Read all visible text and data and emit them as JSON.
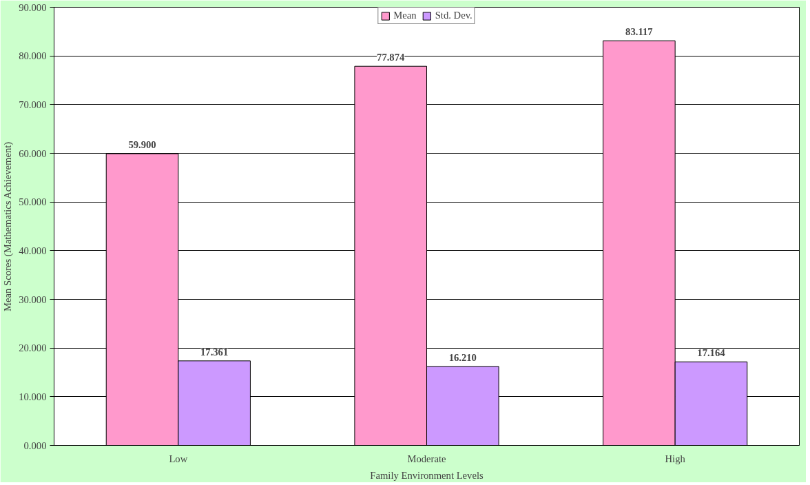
{
  "chart_data": {
    "type": "bar",
    "xlabel": "Family Environment Levels",
    "ylabel": "Mean Scores (Mathematics Achievement)",
    "categories": [
      "Low",
      "Moderate",
      "High"
    ],
    "series": [
      {
        "name": "Mean",
        "color": "#ff99cc",
        "values": [
          59.9,
          77.874,
          83.117
        ],
        "value_labels": [
          "59.900",
          "77.874",
          "83.117"
        ]
      },
      {
        "name": "Std. Dev.",
        "color": "#cc99ff",
        "values": [
          17.361,
          16.21,
          17.164
        ],
        "value_labels": [
          "17.361",
          "16.210",
          "17.164"
        ]
      }
    ],
    "ylim": [
      0,
      90
    ],
    "yticks": [
      {
        "value": 0,
        "label": "0.000"
      },
      {
        "value": 10,
        "label": "10.000"
      },
      {
        "value": 20,
        "label": "20.000"
      },
      {
        "value": 30,
        "label": "30.000"
      },
      {
        "value": 40,
        "label": "40.000"
      },
      {
        "value": 50,
        "label": "50.000"
      },
      {
        "value": 60,
        "label": "60.000"
      },
      {
        "value": 70,
        "label": "70.000"
      },
      {
        "value": 80,
        "label": "80.000"
      },
      {
        "value": 90,
        "label": "90.000"
      }
    ],
    "grid": "y",
    "legend": "top"
  }
}
